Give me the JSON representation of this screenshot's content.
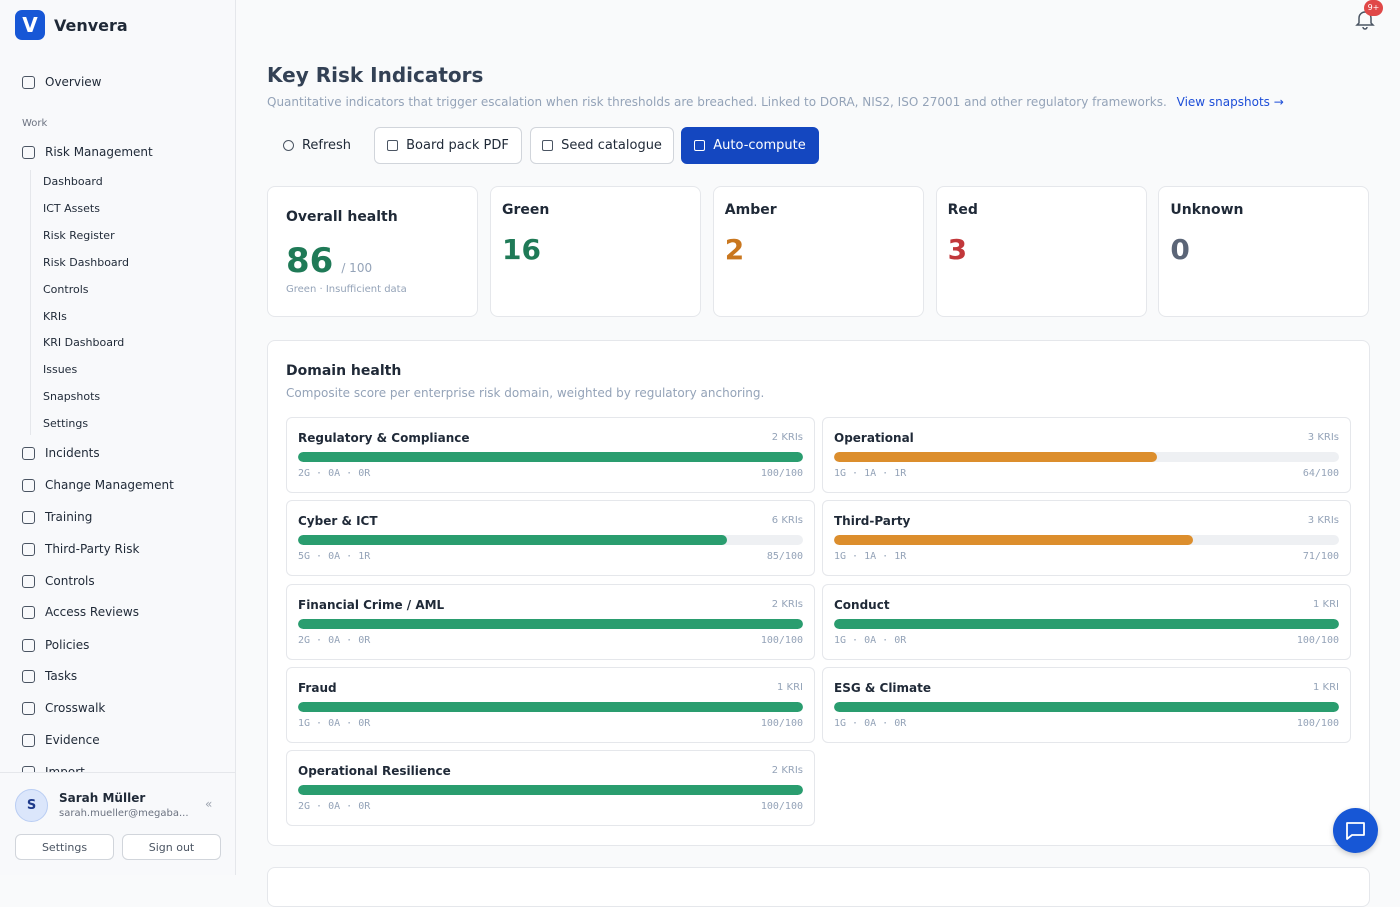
{
  "app": {
    "name": "Venvera",
    "logo_letter": "V",
    "notifications_badge": "9+"
  },
  "nav": {
    "overview": "Overview",
    "section": "Work",
    "risk_management": {
      "label": "Risk Management",
      "children": [
        "Dashboard",
        "ICT Assets",
        "Risk Register",
        "Risk Dashboard",
        "Controls",
        "KRIs",
        "KRI Dashboard",
        "Issues",
        "Snapshots",
        "Settings"
      ]
    },
    "items": [
      "Incidents",
      "Change Management",
      "Training",
      "Third-Party Risk",
      "Controls",
      "Access Reviews",
      "Policies",
      "Tasks",
      "Crosswalk",
      "Evidence",
      "Import"
    ]
  },
  "user": {
    "initial": "S",
    "name": "Sarah Müller",
    "email": "sarah.mueller@megaba...",
    "settings": "Settings",
    "sign_out": "Sign out"
  },
  "header": {
    "title": "Key Risk Indicators",
    "description": "Quantitative indicators that trigger escalation when risk thresholds are breached. Linked to DORA, NIS2, ISO 27001 and other regulatory frameworks.",
    "link": "View snapshots →"
  },
  "actions": [
    "Refresh",
    "Board pack PDF",
    "Seed catalogue",
    "Auto-compute"
  ],
  "stats": {
    "overall": {
      "label": "Overall health",
      "value": 86,
      "out_of": "/ 100",
      "note": "Green · Insufficient data",
      "color": "#1f7a57"
    },
    "cards": [
      {
        "label": "Green",
        "value": 16,
        "color": "#1f7a57"
      },
      {
        "label": "Amber",
        "value": 2,
        "color": "#c9771f"
      },
      {
        "label": "Red",
        "value": 3,
        "color": "#c2383b"
      },
      {
        "label": "Unknown",
        "value": 0,
        "color": "#5b6577"
      }
    ]
  },
  "domain_health": {
    "title": "Domain health",
    "subtitle": "Composite score per enterprise risk domain, weighted by regulatory anchoring.",
    "scale": [
      0,
      100
    ],
    "domains": [
      {
        "name": "Regulatory & Compliance",
        "kris": "2 KRIs",
        "counts": "2G · 0A · 0R",
        "score": 100,
        "score_label": "100/100",
        "color": "#2a9d6f"
      },
      {
        "name": "Operational",
        "kris": "3 KRIs",
        "counts": "1G · 1A · 1R",
        "score": 64,
        "score_label": "64/100",
        "color": "#dc8e2d"
      },
      {
        "name": "Cyber & ICT",
        "kris": "6 KRIs",
        "counts": "5G · 0A · 1R",
        "score": 85,
        "score_label": "85/100",
        "color": "#2a9d6f"
      },
      {
        "name": "Third-Party",
        "kris": "3 KRIs",
        "counts": "1G · 1A · 1R",
        "score": 71,
        "score_label": "71/100",
        "color": "#dc8e2d"
      },
      {
        "name": "Financial Crime / AML",
        "kris": "2 KRIs",
        "counts": "2G · 0A · 0R",
        "score": 100,
        "score_label": "100/100",
        "color": "#2a9d6f"
      },
      {
        "name": "Conduct",
        "kris": "1 KRI",
        "counts": "1G · 0A · 0R",
        "score": 100,
        "score_label": "100/100",
        "color": "#2a9d6f"
      },
      {
        "name": "Fraud",
        "kris": "1 KRI",
        "counts": "1G · 0A · 0R",
        "score": 100,
        "score_label": "100/100",
        "color": "#2a9d6f"
      },
      {
        "name": "ESG & Climate",
        "kris": "1 KRI",
        "counts": "1G · 0A · 0R",
        "score": 100,
        "score_label": "100/100",
        "color": "#2a9d6f"
      },
      {
        "name": "Operational Resilience",
        "kris": "2 KRIs",
        "counts": "2G · 0A · 0R",
        "score": 100,
        "score_label": "100/100",
        "color": "#2a9d6f"
      }
    ]
  }
}
